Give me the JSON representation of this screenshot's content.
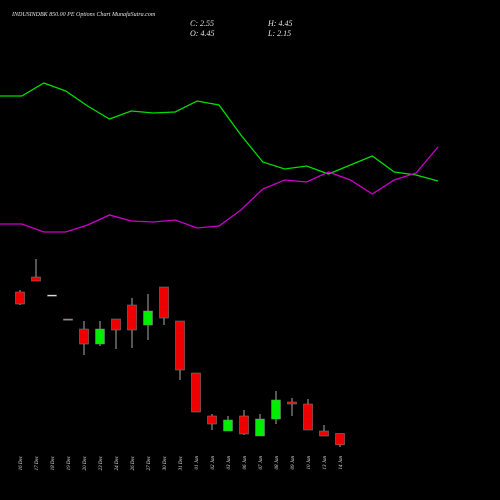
{
  "chart_data": {
    "type": "candlestick",
    "title": "INDUSINDBK 850.00 PE Options Chart MunafaSutra.com",
    "ohlc_labels": [
      "C: 2.55",
      "H: 4.45",
      "O: 4.45",
      "L: 2.15"
    ],
    "categories": [
      "16 Dec",
      "17 Dec",
      "18 Dec",
      "19 Dec",
      "20 Dec",
      "23 Dec",
      "24 Dec",
      "26 Dec",
      "27 Dec",
      "30 Dec",
      "31 Dec",
      "01 Jan",
      "02 Jan",
      "03 Jan",
      "06 Jan",
      "07 Jan",
      "08 Jan",
      "09 Jan",
      "10 Jan",
      "13 Jan",
      "14 Jan"
    ],
    "open": [
      28.5,
      31.05,
      27.99,
      23.74,
      22.21,
      19.66,
      23.91,
      26.29,
      22.89,
      29.35,
      23.57,
      14.73,
      7.42,
      4.87,
      7.42,
      4.02,
      6.91,
      9.8,
      9.46,
      4.87,
      4.45
    ],
    "high": [
      28.84,
      34.11,
      27.99,
      23.91,
      23.57,
      23.57,
      23.91,
      27.48,
      28.16,
      29.35,
      23.57,
      14.73,
      7.76,
      7.42,
      8.44,
      7.76,
      11.67,
      10.48,
      10.31,
      5.89,
      4.45
    ],
    "low": [
      26.29,
      30.37,
      27.99,
      23.74,
      17.79,
      19.32,
      18.81,
      18.98,
      20.34,
      22.89,
      13.54,
      8.1,
      5.04,
      4.87,
      4.19,
      4.02,
      6.06,
      7.42,
      5.04,
      4.02,
      2.15
    ],
    "close": [
      26.46,
      30.37,
      27.99,
      23.91,
      19.66,
      22.21,
      22.04,
      22.04,
      25.27,
      24.08,
      15.24,
      8.1,
      6.06,
      6.74,
      4.36,
      6.91,
      10.14,
      9.46,
      5.04,
      4.02,
      2.55
    ],
    "up_color": "#00ee00",
    "down_color": "#ee0000",
    "doji_color": "#ffffff",
    "ylim": [
      1.64,
      35.64
    ],
    "indicators": {
      "ylim": [
        0,
        250
      ],
      "series": [
        {
          "color": "#00dd00",
          "values": [
            154,
            154,
            167,
            159,
            144,
            131,
            139,
            137,
            138,
            149,
            145,
            115,
            88,
            81,
            84,
            76,
            85,
            94,
            78,
            75,
            69
          ]
        },
        {
          "color": "#cc00cc",
          "values": [
            26,
            26,
            18,
            18,
            25,
            35,
            29,
            28,
            30,
            22,
            24,
            40,
            61,
            70,
            68,
            78,
            70,
            56,
            70,
            77,
            103
          ]
        }
      ]
    }
  }
}
